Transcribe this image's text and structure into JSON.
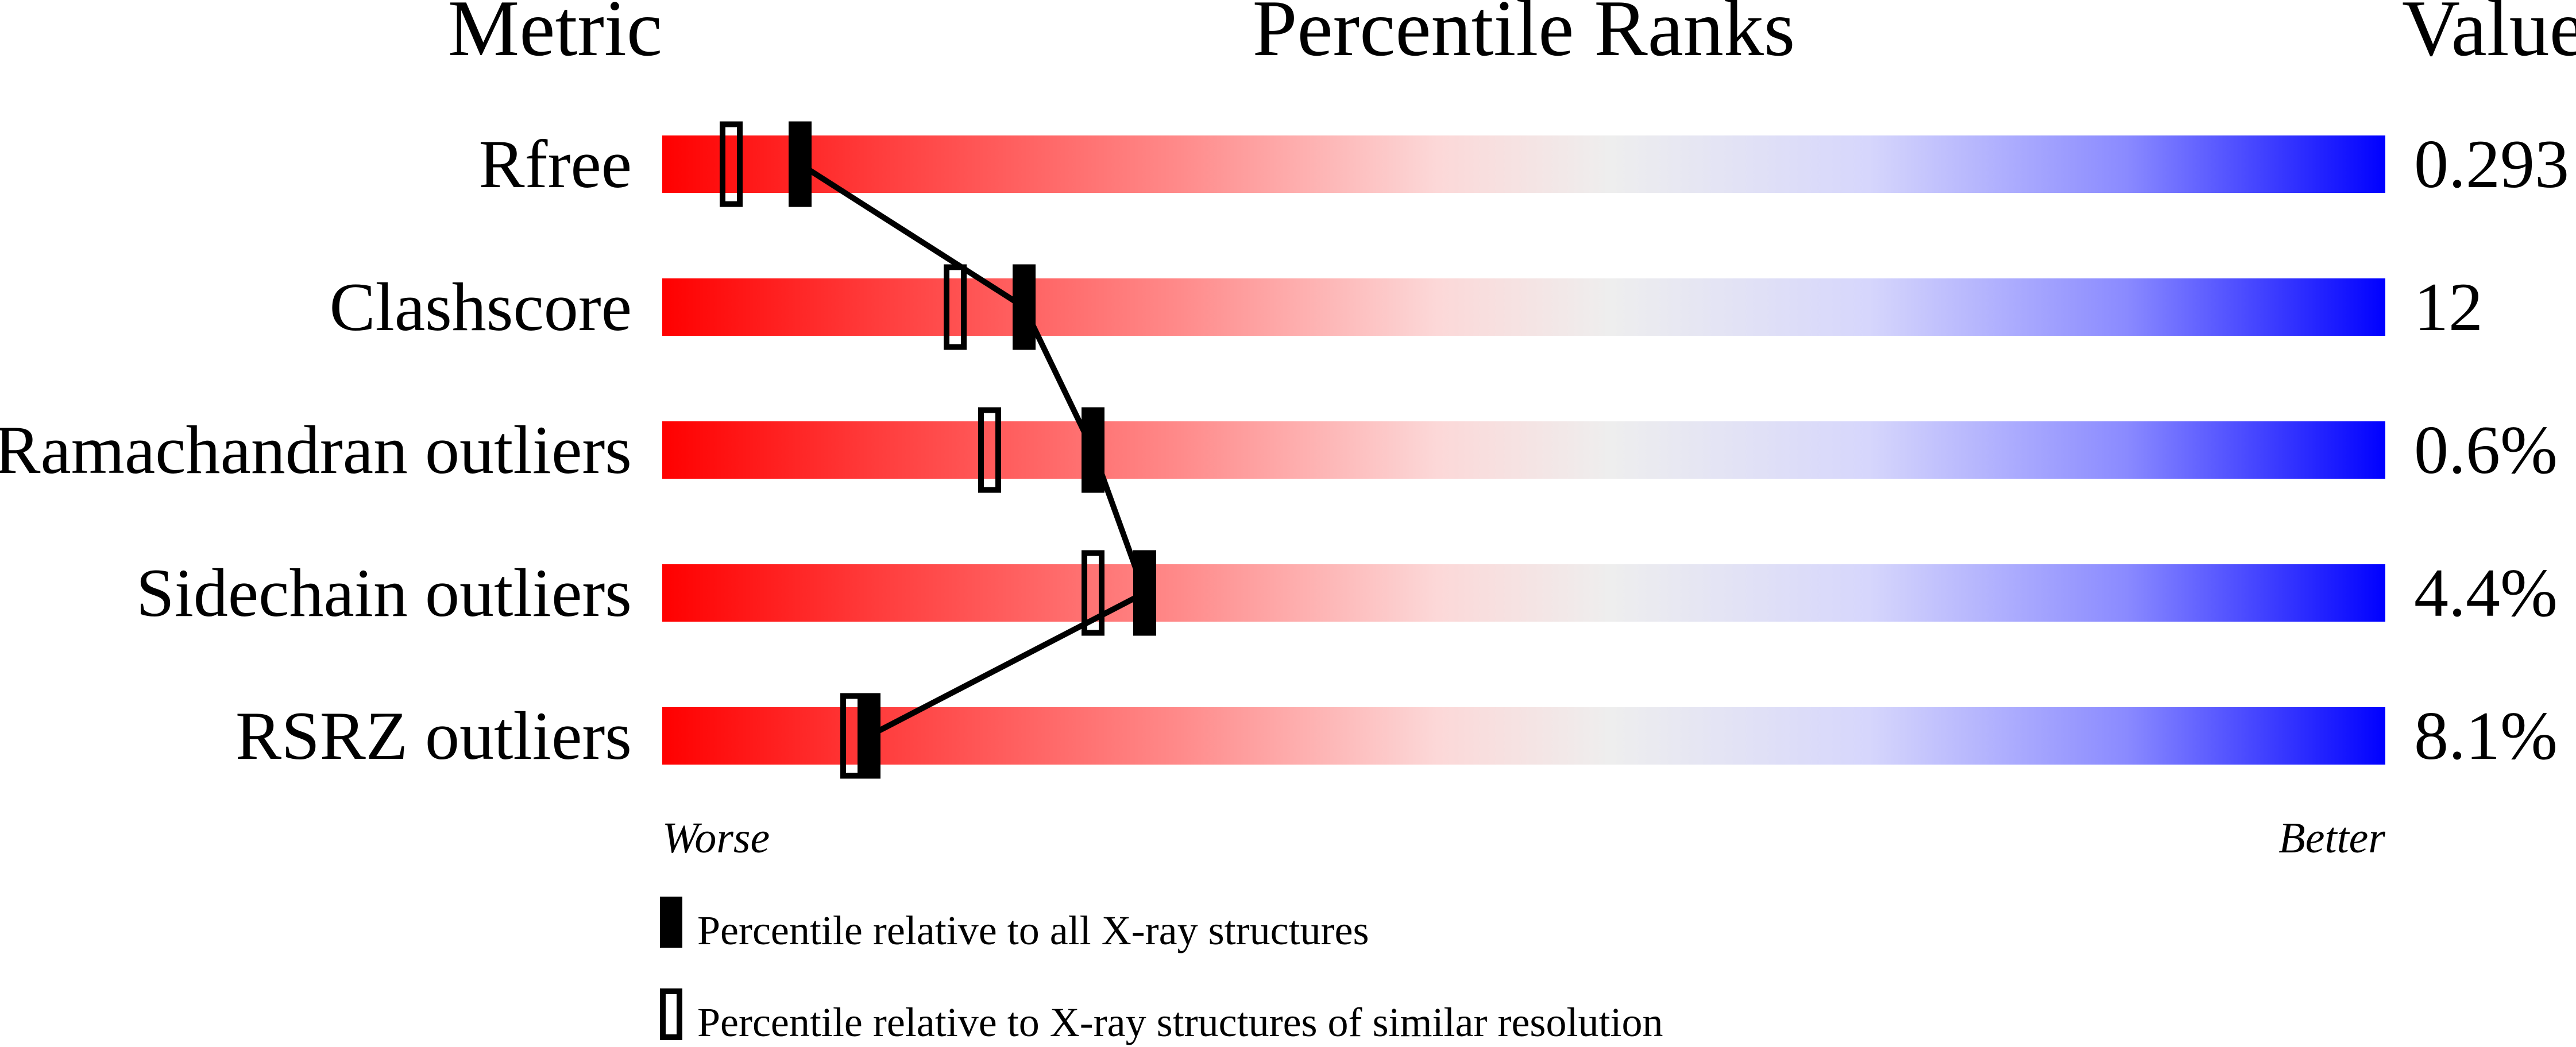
{
  "chart_data": {
    "type": "bar",
    "headers": {
      "metric": "Metric",
      "percentile": "Percentile Ranks",
      "value": "Value"
    },
    "categories": [
      "Rfree",
      "Clashscore",
      "Ramachandran outliers",
      "Sidechain outliers",
      "RSRZ outliers"
    ],
    "values": [
      "0.293",
      "12",
      "0.6%",
      "4.4%",
      "8.1%"
    ],
    "xlim": [
      0,
      100
    ],
    "series": [
      {
        "name": "Percentile relative to all X-ray structures",
        "style": "filled",
        "values": [
          8,
          21,
          25,
          28,
          12
        ]
      },
      {
        "name": "Percentile relative to X-ray structures of similar resolution",
        "style": "open",
        "values": [
          4,
          17,
          19,
          25,
          11
        ]
      }
    ],
    "axis_labels": {
      "left": "Worse",
      "right": "Better"
    },
    "colors": {
      "worse": "#ff0000",
      "middle": "#eeeeee",
      "better": "#0000ff",
      "marker": "#000000"
    },
    "legend_placement": "bottom-left"
  }
}
